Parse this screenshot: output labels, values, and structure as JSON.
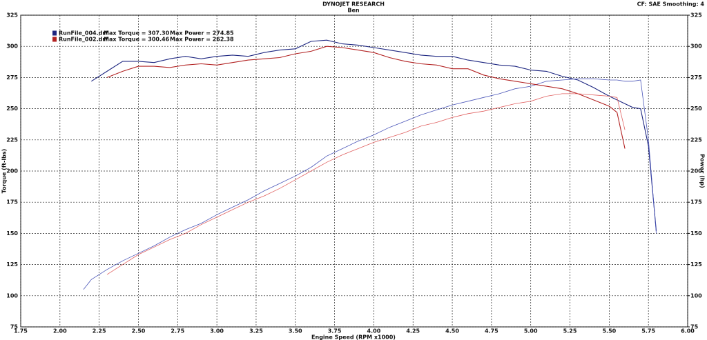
{
  "chart_data": {
    "type": "line",
    "title": "DYNOJET RESEARCH",
    "subtitle": "Ben",
    "corner_note": "CF: SAE  Smoothing: 4",
    "x_label": "Engine Speed (RPM x1000)",
    "y_label": "Torque (ft-lbs)",
    "y2_label": "Power (hp)",
    "x": [
      2.15,
      2.2,
      2.3,
      2.4,
      2.5,
      2.6,
      2.7,
      2.8,
      2.9,
      3.0,
      3.1,
      3.2,
      3.3,
      3.4,
      3.5,
      3.6,
      3.7,
      3.8,
      3.9,
      4.0,
      4.1,
      4.2,
      4.3,
      4.4,
      4.5,
      4.6,
      4.7,
      4.8,
      4.9,
      5.0,
      5.1,
      5.2,
      5.3,
      5.4,
      5.5,
      5.55,
      5.6,
      5.65,
      5.7,
      5.75,
      5.8
    ],
    "series": [
      {
        "name": "RunFile_004.drf",
        "color": "#1c2580",
        "values": [
          null,
          272,
          280,
          288,
          288,
          287,
          290,
          292,
          290,
          292,
          293,
          292,
          295,
          297,
          298,
          304,
          305,
          302,
          301,
          299,
          297,
          295,
          293,
          292,
          292,
          289,
          287,
          285,
          284,
          281,
          280,
          276,
          273,
          267,
          260,
          257,
          254,
          251,
          250,
          220,
          152
        ]
      },
      {
        "color": "#4a55b8",
        "axis": "y2",
        "values": [
          105,
          113,
          121,
          128,
          134,
          140,
          147,
          153,
          158,
          165,
          171,
          177,
          184,
          190,
          196,
          203,
          212,
          218,
          224,
          229,
          235,
          240,
          245,
          249,
          253,
          256,
          259,
          262,
          266,
          268,
          272,
          273,
          274,
          274,
          273,
          273,
          272,
          272,
          273,
          225,
          150
        ]
      },
      {
        "name": "RunFile_002.drf",
        "color": "#b22222",
        "values": [
          null,
          null,
          275,
          280,
          284,
          284,
          283,
          285,
          286,
          285,
          287,
          289,
          290,
          291,
          294,
          296,
          300,
          299,
          297,
          295,
          291,
          288,
          286,
          285,
          282,
          282,
          277,
          274,
          272,
          270,
          268,
          266,
          262,
          257,
          252,
          247,
          218,
          null,
          null,
          null,
          null
        ]
      },
      {
        "color": "#e06060",
        "axis": "y2",
        "values": [
          null,
          null,
          117,
          125,
          133,
          139,
          145,
          150,
          157,
          163,
          169,
          175,
          180,
          186,
          193,
          200,
          207,
          213,
          218,
          223,
          227,
          231,
          236,
          239,
          243,
          246,
          248,
          251,
          254,
          256,
          260,
          262,
          262,
          261,
          260,
          259,
          233,
          null,
          null,
          null,
          null
        ]
      }
    ],
    "legend_notes": [
      [
        "Max Torque = 307.30",
        "Max Power = 274.85"
      ],
      [
        "Max Torque = 300.46",
        "Max Power = 262.38"
      ]
    ],
    "xlim": [
      1.75,
      6.0
    ],
    "xticks": [
      1.75,
      {
        "value": 2,
        "label": "2.00"
      },
      2.25,
      {
        "value": 2.5,
        "label": "2.50"
      },
      2.75,
      {
        "value": 3,
        "label": "3.00"
      },
      3.25,
      {
        "value": 3.5,
        "label": "3.50"
      },
      3.75,
      {
        "value": 4,
        "label": "4.00"
      },
      4.25,
      {
        "value": 4.5,
        "label": "4.50"
      },
      4.75,
      {
        "value": 5,
        "label": "5.00"
      },
      5.25,
      {
        "value": 5.5,
        "label": "5.50"
      },
      5.75,
      {
        "value": 6,
        "label": "6.00"
      }
    ],
    "ylim": [
      75,
      325
    ],
    "yticks": [
      75,
      100,
      125,
      150,
      175,
      200,
      225,
      250,
      275,
      300,
      325
    ],
    "y2lim": [
      75,
      325
    ],
    "y2ticks": [
      75,
      100,
      125,
      150,
      175,
      200,
      225,
      250,
      275,
      300,
      325
    ],
    "grid": true
  }
}
